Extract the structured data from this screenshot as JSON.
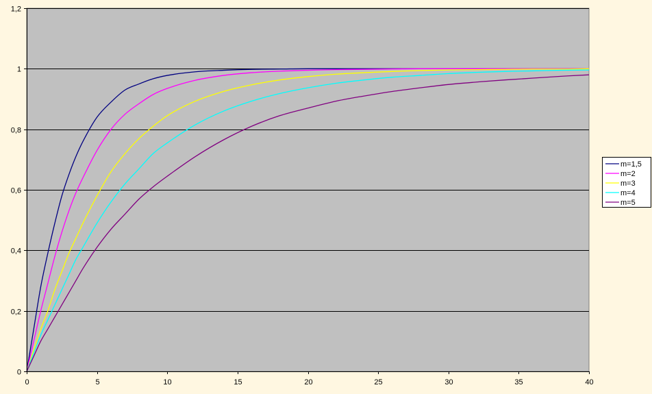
{
  "chart_data": {
    "type": "line",
    "title": "",
    "xlabel": "",
    "ylabel": "",
    "xlim": [
      0,
      40
    ],
    "ylim": [
      0,
      1.2
    ],
    "x_ticks": [
      0,
      5,
      10,
      15,
      20,
      25,
      30,
      35,
      40
    ],
    "x_tick_labels": [
      "0",
      "5",
      "10",
      "15",
      "20",
      "25",
      "30",
      "35",
      "40"
    ],
    "y_ticks": [
      0,
      0.2,
      0.4,
      0.6,
      0.8,
      1,
      1.2
    ],
    "y_tick_labels": [
      "0",
      "0,2",
      "0,4",
      "0,6",
      "0,8",
      "1",
      "1,2"
    ],
    "grid": "horizontal",
    "plot_background": "#C0C0C0",
    "page_background": "#FFF7E1",
    "legend_placement": "right",
    "x": [
      0,
      0.5,
      1,
      1.5,
      2,
      2.5,
      3,
      3.5,
      4,
      5,
      6,
      7,
      8,
      9,
      10,
      12,
      14,
      16,
      18,
      20,
      22,
      24,
      26,
      28,
      30,
      32,
      34,
      36,
      38,
      40
    ],
    "series": [
      {
        "name": "m=1,5",
        "color": "#000080",
        "values": [
          0,
          0.14,
          0.28,
          0.39,
          0.49,
          0.58,
          0.65,
          0.71,
          0.76,
          0.84,
          0.89,
          0.93,
          0.95,
          0.967,
          0.978,
          0.99,
          0.995,
          0.998,
          0.999,
          1,
          1,
          1,
          1,
          1,
          1,
          1,
          1,
          1,
          1,
          1
        ]
      },
      {
        "name": "m=2",
        "color": "#FF00FF",
        "values": [
          0,
          0.1,
          0.2,
          0.29,
          0.38,
          0.46,
          0.53,
          0.59,
          0.64,
          0.73,
          0.8,
          0.85,
          0.885,
          0.915,
          0.935,
          0.962,
          0.978,
          0.987,
          0.992,
          0.995,
          0.997,
          0.998,
          0.999,
          1,
          1,
          1,
          1,
          1,
          1,
          1
        ]
      },
      {
        "name": "m=3",
        "color": "#FFFF00",
        "values": [
          0,
          0.07,
          0.14,
          0.2,
          0.27,
          0.33,
          0.39,
          0.44,
          0.49,
          0.58,
          0.66,
          0.72,
          0.77,
          0.81,
          0.845,
          0.893,
          0.925,
          0.947,
          0.963,
          0.974,
          0.982,
          0.987,
          0.991,
          0.994,
          0.996,
          0.997,
          0.998,
          0.999,
          0.999,
          1
        ]
      },
      {
        "name": "m=4",
        "color": "#00FFFF",
        "values": [
          0,
          0.06,
          0.12,
          0.17,
          0.22,
          0.27,
          0.32,
          0.37,
          0.41,
          0.49,
          0.56,
          0.62,
          0.67,
          0.72,
          0.755,
          0.815,
          0.86,
          0.893,
          0.918,
          0.937,
          0.952,
          0.963,
          0.972,
          0.978,
          0.984,
          0.988,
          0.991,
          0.993,
          0.995,
          0.996
        ]
      },
      {
        "name": "m=5",
        "color": "#800080",
        "values": [
          0,
          0.05,
          0.1,
          0.14,
          0.18,
          0.22,
          0.26,
          0.3,
          0.34,
          0.41,
          0.47,
          0.52,
          0.57,
          0.61,
          0.645,
          0.71,
          0.765,
          0.81,
          0.845,
          0.87,
          0.893,
          0.91,
          0.925,
          0.937,
          0.948,
          0.956,
          0.963,
          0.969,
          0.975,
          0.98
        ]
      }
    ]
  }
}
